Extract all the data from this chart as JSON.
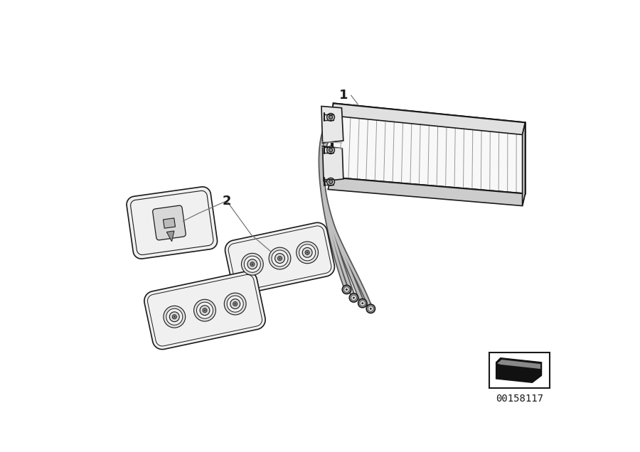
{
  "bg_color": "#ffffff",
  "line_color": "#1a1a1a",
  "fig_width": 9.0,
  "fig_height": 6.36,
  "dpi": 100,
  "part_labels": [
    "1",
    "2"
  ],
  "watermark_text": "00158117"
}
